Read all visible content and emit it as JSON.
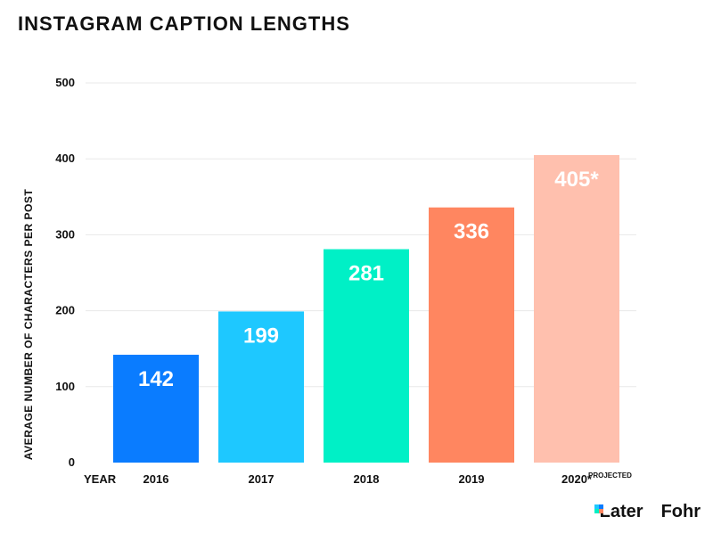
{
  "title": "INSTAGRAM CAPTION LENGTHS",
  "chart_data": {
    "type": "bar",
    "categories": [
      "2016",
      "2017",
      "2018",
      "2019",
      "2020*"
    ],
    "values": [
      142,
      199,
      281,
      336,
      405
    ],
    "value_labels": [
      "142",
      "199",
      "281",
      "336",
      "405*"
    ],
    "colors": [
      "#0a7cff",
      "#1ec8ff",
      "#00f0c6",
      "#ff8660",
      "#ffc0ae"
    ],
    "ylabel": "AVERAGE NUMBER OF CHARACTERS PER POST",
    "xlabel": "YEAR",
    "ylim": [
      0,
      500
    ],
    "yticks": [
      0,
      100,
      200,
      300,
      400,
      500
    ],
    "footnote": "PROJECTED",
    "grid": true,
    "gridline_color": "#e8e8e8"
  },
  "logos": {
    "later": "Later",
    "fohr": "Fohr"
  }
}
